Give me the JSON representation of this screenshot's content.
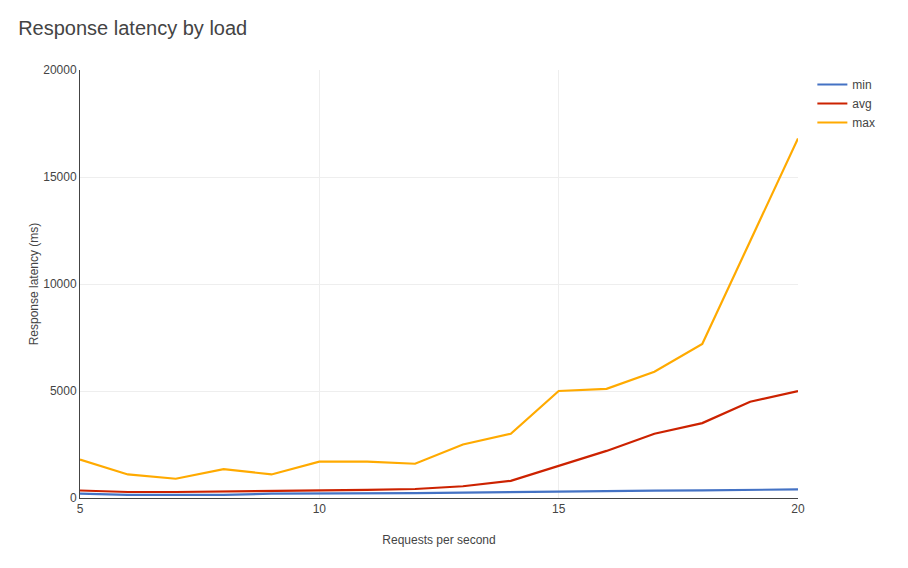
{
  "chart_data": {
    "type": "line",
    "title": "Response latency by load",
    "xlabel": "Requests per second",
    "ylabel": "Response latency (ms)",
    "x": [
      5,
      6,
      7,
      8,
      9,
      10,
      11,
      12,
      13,
      14,
      15,
      16,
      17,
      18,
      19,
      20
    ],
    "series": [
      {
        "name": "min",
        "color": "#4472c4",
        "values": [
          200,
          150,
          150,
          150,
          200,
          200,
          220,
          230,
          250,
          280,
          300,
          320,
          340,
          360,
          380,
          400
        ]
      },
      {
        "name": "avg",
        "color": "#cc2200",
        "values": [
          350,
          280,
          280,
          300,
          320,
          350,
          380,
          420,
          550,
          800,
          1500,
          2200,
          3000,
          3500,
          4500,
          5000
        ]
      },
      {
        "name": "max",
        "color": "#ffaa00",
        "values": [
          1800,
          1100,
          900,
          1350,
          1100,
          1700,
          1700,
          1600,
          2500,
          3000,
          5000,
          5100,
          5900,
          7200,
          12000,
          16800
        ]
      }
    ],
    "xlim": [
      5,
      20
    ],
    "xticks": [
      5,
      10,
      15,
      20
    ],
    "ylim": [
      0,
      20000
    ],
    "yticks": [
      0,
      5000,
      10000,
      15000,
      20000
    ],
    "grid": true,
    "legend": "right"
  }
}
